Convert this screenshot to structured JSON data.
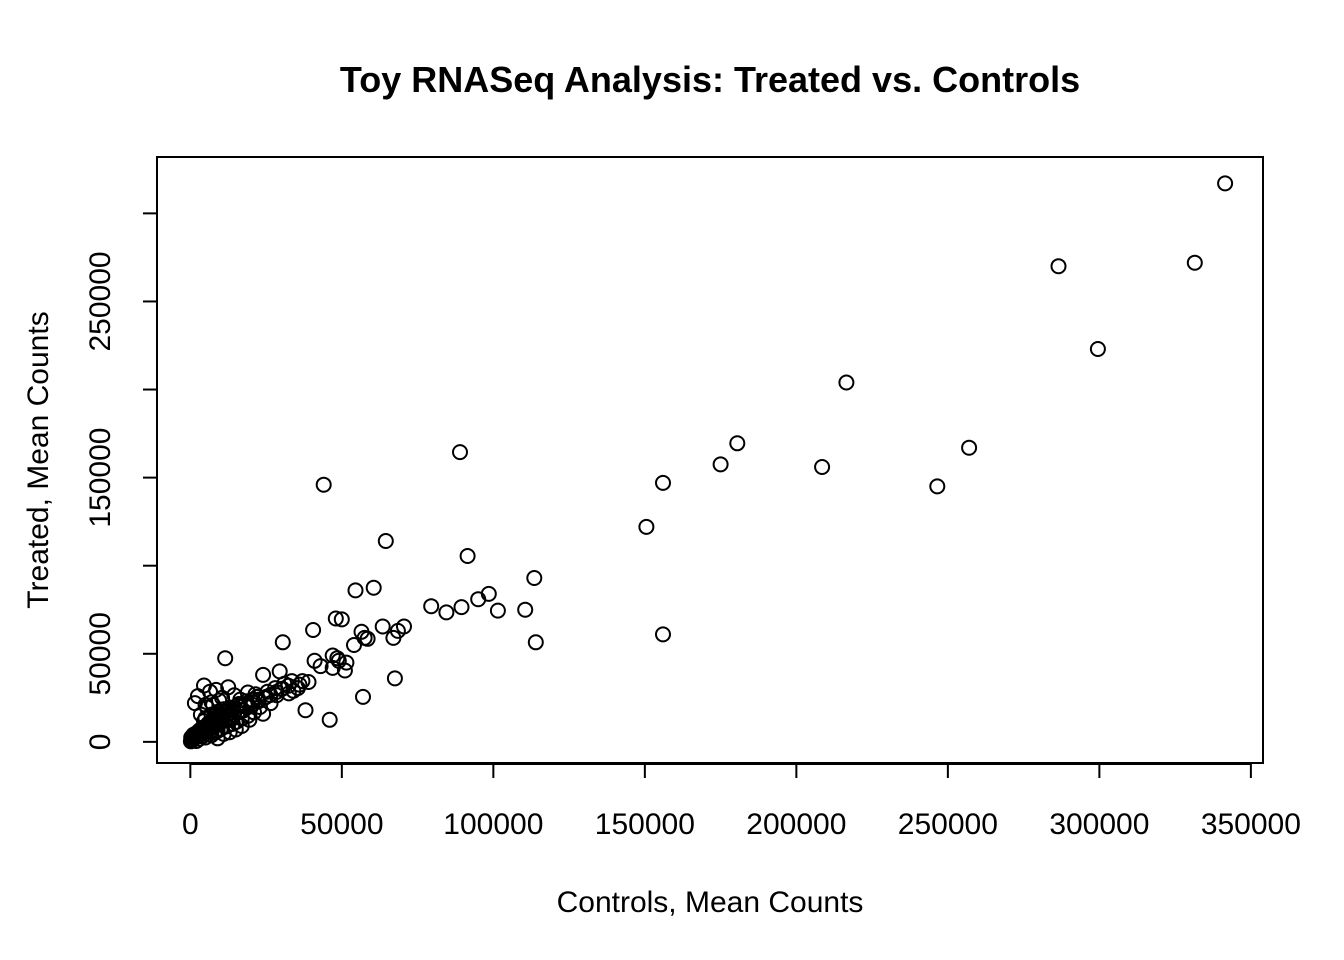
{
  "chart_data": {
    "type": "scatter",
    "title": "Toy RNASeq Analysis: Treated vs. Controls",
    "xlabel": "Controls, Mean Counts",
    "ylabel": "Treated, Mean Counts",
    "xlim": [
      -11000,
      354000
    ],
    "ylim": [
      -12000,
      332000
    ],
    "x_ticks": [
      0,
      50000,
      100000,
      150000,
      200000,
      250000,
      300000,
      350000
    ],
    "x_tick_labels": [
      "0",
      "50000",
      "100000",
      "150000",
      "200000",
      "250000",
      "300000",
      "350000"
    ],
    "y_ticks": [
      0,
      50000,
      100000,
      150000,
      200000,
      250000,
      300000
    ],
    "y_tick_labels": [
      "0",
      "50000",
      "",
      "150000",
      "",
      "250000",
      ""
    ],
    "grid": false,
    "legend": "none",
    "series": [
      {
        "marker": "open-circle",
        "x": [
          341500,
          331500,
          286500,
          299500,
          216500,
          180500,
          257000,
          175000,
          208500,
          246500,
          156000,
          150500,
          156000,
          89000,
          44000,
          91500,
          64500,
          113500,
          60500,
          54500,
          98500,
          95000,
          79500,
          84500,
          89500,
          101500,
          110500,
          114000,
          70500,
          68500,
          48000,
          50000,
          56500,
          57500,
          58500,
          67000,
          63500,
          30500,
          40500,
          48500,
          49000,
          54000,
          51500,
          47000,
          41000,
          43000,
          47000,
          51000,
          11500,
          24000,
          29500,
          67500,
          57000,
          39000,
          37000,
          46000,
          35500,
          34000,
          32500,
          30000,
          28500,
          25000,
          22500,
          20500,
          18000,
          15500,
          13000,
          11000,
          9000,
          7000,
          5000,
          4500,
          6500,
          8500,
          10500,
          12500,
          14500,
          16500,
          19000,
          21500,
          24000,
          26500,
          2500,
          1500,
          3500,
          5500,
          7500,
          9500,
          11500,
          13500,
          17000,
          19500,
          1000,
          2000,
          3000,
          4000,
          6000,
          8000,
          10000,
          12000,
          500,
          1200,
          1800,
          2400,
          3000,
          3600,
          4200,
          4800,
          5400,
          6000,
          6600,
          7200,
          7800,
          8400,
          9000,
          9600,
          10200,
          10800,
          11400,
          12000,
          300,
          800,
          1300,
          1900,
          2600,
          3300,
          4100,
          5200,
          6300,
          7400,
          8600,
          9800,
          14000,
          16000,
          18500,
          22000,
          25500,
          28000,
          31000,
          33500,
          36000,
          38000,
          2000,
          3000,
          4000,
          5000,
          6000,
          7000,
          8000,
          9000,
          10000,
          12000,
          14000,
          15000,
          17000,
          19000,
          21000,
          23000,
          3500,
          6500,
          9500,
          13500,
          17500,
          4500,
          8500,
          12500,
          16500,
          20500,
          200,
          600,
          1000,
          1500,
          2200,
          2800,
          3600,
          4400,
          5600,
          6800,
          8000,
          9200,
          10400,
          11600,
          12800,
          14200,
          15600,
          17200,
          18800,
          20400,
          22400,
          24400,
          26400,
          28400,
          30400,
          32400,
          5000,
          7000,
          9000,
          11000,
          13000,
          15000
        ],
        "y": [
          317000,
          272000,
          270000,
          223000,
          204000,
          169500,
          167000,
          157500,
          156000,
          145000,
          147000,
          122000,
          61000,
          164500,
          146000,
          105500,
          114000,
          93000,
          87500,
          86000,
          84000,
          81000,
          77000,
          73500,
          76500,
          74500,
          75000,
          56500,
          65500,
          63000,
          70000,
          69500,
          62500,
          59000,
          58500,
          59000,
          65500,
          56500,
          63500,
          47500,
          46000,
          55000,
          45000,
          49000,
          46000,
          43000,
          42000,
          40500,
          47500,
          38000,
          40000,
          36000,
          25500,
          34000,
          34500,
          12500,
          30500,
          29000,
          27500,
          30000,
          26500,
          25500,
          24000,
          22500,
          21500,
          20500,
          19500,
          18500,
          17000,
          15500,
          13500,
          32000,
          28500,
          29500,
          25000,
          31000,
          26500,
          24000,
          28000,
          27000,
          16000,
          22000,
          26000,
          22000,
          15500,
          19500,
          21000,
          23500,
          17500,
          16500,
          9000,
          12500,
          4000,
          5000,
          6500,
          8000,
          10500,
          12000,
          14500,
          15000,
          1000,
          2000,
          3000,
          4000,
          5000,
          5500,
          6500,
          7500,
          8500,
          9500,
          10000,
          11000,
          11500,
          12500,
          13500,
          14000,
          14500,
          15500,
          16500,
          17000,
          2500,
          1500,
          3500,
          2800,
          4800,
          6000,
          7000,
          9000,
          10500,
          12000,
          13500,
          15000,
          19000,
          21500,
          23000,
          25500,
          28500,
          30500,
          33000,
          34500,
          32500,
          18000,
          500,
          1800,
          3200,
          2500,
          4200,
          3800,
          5200,
          6200,
          7200,
          8800,
          10200,
          11200,
          13200,
          14800,
          16800,
          19800,
          6800,
          9800,
          13200,
          12800,
          17800,
          11800,
          15800,
          18200,
          20200,
          23800,
          300,
          900,
          1600,
          2400,
          3000,
          3800,
          4600,
          5500,
          6600,
          7800,
          9000,
          10200,
          11500,
          12800,
          13900,
          15300,
          16700,
          18100,
          19600,
          21100,
          22900,
          24900,
          26600,
          28300,
          30200,
          31900,
          21000,
          22500,
          2000,
          4500,
          5500,
          7000
        ]
      }
    ]
  }
}
